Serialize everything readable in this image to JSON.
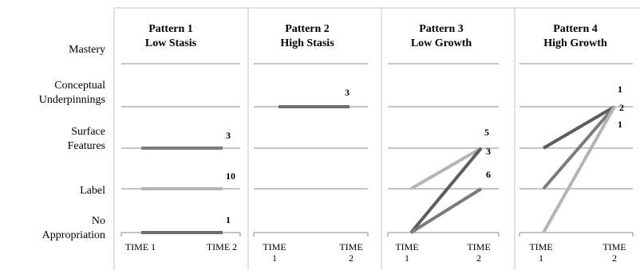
{
  "chart_data": [
    {
      "type": "line",
      "title": "Pattern 1",
      "subtitle": "Low Stasis",
      "x": [
        "TIME 1",
        "TIME 2"
      ],
      "y_levels": [
        "No Appropriation",
        "Label",
        "Surface Features",
        "Conceptual Underpinnings",
        "Mastery"
      ],
      "series": [
        {
          "values": [
            "Surface Features",
            "Surface Features"
          ],
          "count": "3",
          "color": "#7b7b7b"
        },
        {
          "values": [
            "Label",
            "Label"
          ],
          "count": "10",
          "color": "#b4b4b4"
        },
        {
          "values": [
            "No Appropriation",
            "No Appropriation"
          ],
          "count": "1",
          "color": "#6e6e6e"
        }
      ]
    },
    {
      "type": "line",
      "title": "Pattern 2",
      "subtitle": "High Stasis",
      "x": [
        "TIME 1",
        "TIME 2"
      ],
      "y_levels": [
        "No Appropriation",
        "Label",
        "Surface Features",
        "Conceptual Underpinnings",
        "Mastery"
      ],
      "series": [
        {
          "values": [
            "Conceptual Underpinnings",
            "Conceptual Underpinnings"
          ],
          "count": "3",
          "color": "#6e6e6e"
        }
      ]
    },
    {
      "type": "line",
      "title": "Pattern 3",
      "subtitle": "Low Growth",
      "x": [
        "TIME 1",
        "TIME 2"
      ],
      "y_levels": [
        "No Appropriation",
        "Label",
        "Surface Features",
        "Conceptual Underpinnings",
        "Mastery"
      ],
      "series": [
        {
          "values": [
            "Label",
            "Surface Features"
          ],
          "count": "5",
          "color": "#b4b4b4"
        },
        {
          "values": [
            "No Appropriation",
            "Surface Features"
          ],
          "count": "3",
          "color": "#5c5c5c"
        },
        {
          "values": [
            "No Appropriation",
            "Label"
          ],
          "count": "6",
          "color": "#7b7b7b"
        }
      ]
    },
    {
      "type": "line",
      "title": "Pattern 4",
      "subtitle": "High Growth",
      "x": [
        "TIME 1",
        "TIME 2"
      ],
      "y_levels": [
        "No Appropriation",
        "Label",
        "Surface Features",
        "Conceptual Underpinnings",
        "Mastery"
      ],
      "series": [
        {
          "values": [
            "Surface Features",
            "Conceptual Underpinnings"
          ],
          "count": "1",
          "color": "#5c5c5c"
        },
        {
          "values": [
            "Label",
            "Conceptual Underpinnings"
          ],
          "count": "2",
          "color": "#7b7b7b"
        },
        {
          "values": [
            "No Appropriation",
            "Conceptual Underpinnings"
          ],
          "count": "1",
          "color": "#b4b4b4"
        }
      ]
    }
  ],
  "y_axis_labels": [
    {
      "lines": [
        "Mastery"
      ]
    },
    {
      "lines": [
        "Conceptual",
        "Underpinnings"
      ]
    },
    {
      "lines": [
        "Surface",
        "Features"
      ]
    },
    {
      "lines": [
        "Label"
      ]
    },
    {
      "lines": [
        "No",
        "Appropriation"
      ]
    }
  ],
  "x_tick_text": [
    {
      "t1": [
        "TIME 1"
      ],
      "t2": [
        "TIME 2"
      ]
    },
    {
      "t1": [
        "TIME",
        "1"
      ],
      "t2": [
        "TIME",
        "2"
      ]
    },
    {
      "t1": [
        "TIME",
        "1"
      ],
      "t2": [
        "TIME",
        "2"
      ]
    },
    {
      "t1": [
        "TIME",
        "1"
      ],
      "t2": [
        "TIME",
        "2"
      ]
    }
  ]
}
